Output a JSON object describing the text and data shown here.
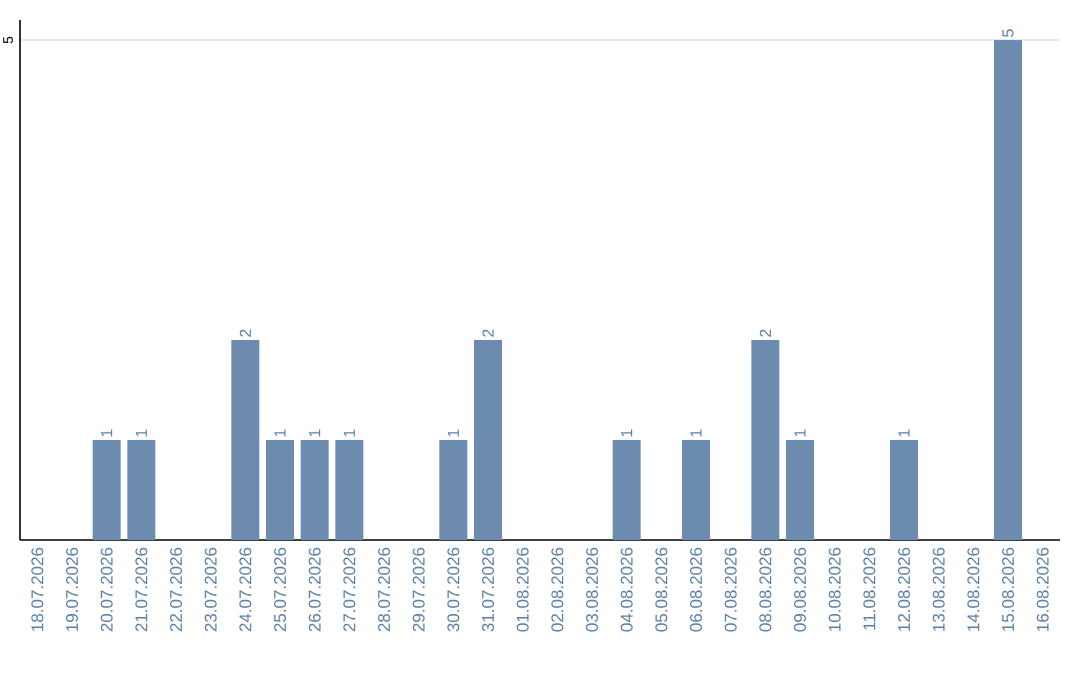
{
  "chart_data": {
    "type": "bar",
    "categories": [
      "18.07.2026",
      "19.07.2026",
      "20.07.2026",
      "21.07.2026",
      "22.07.2026",
      "23.07.2026",
      "24.07.2026",
      "25.07.2026",
      "26.07.2026",
      "27.07.2026",
      "28.07.2026",
      "29.07.2026",
      "30.07.2026",
      "31.07.2026",
      "01.08.2026",
      "02.08.2026",
      "03.08.2026",
      "04.08.2026",
      "05.08.2026",
      "06.08.2026",
      "07.08.2026",
      "08.08.2026",
      "09.08.2026",
      "10.08.2026",
      "11.08.2026",
      "12.08.2026",
      "13.08.2026",
      "14.08.2026",
      "15.08.2026",
      "16.08.2026"
    ],
    "values": [
      0,
      0,
      1,
      1,
      0,
      0,
      2,
      1,
      1,
      1,
      0,
      0,
      1,
      2,
      0,
      0,
      0,
      1,
      0,
      1,
      0,
      2,
      1,
      0,
      0,
      1,
      0,
      0,
      5,
      0
    ],
    "value_labels": [
      null,
      null,
      "1",
      "1",
      null,
      null,
      "2",
      "1",
      "1",
      "1",
      null,
      null,
      "1",
      "2",
      null,
      null,
      null,
      "1",
      null,
      "1",
      null,
      "2",
      "1",
      null,
      null,
      "1",
      null,
      null,
      "5",
      null
    ],
    "color": "#6b8cae",
    "ylim": [
      0,
      5.2
    ],
    "yticks": [
      5
    ],
    "grid": "y"
  }
}
